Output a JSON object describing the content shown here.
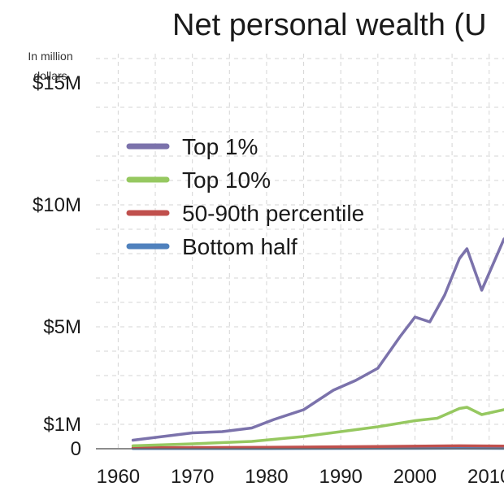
{
  "chart_data": {
    "type": "line",
    "title": "Net personal wealth (U",
    "ylabel": "In million dollars",
    "xlabel": "",
    "xlim": [
      1957,
      2012
    ],
    "ylim": [
      0,
      16.2
    ],
    "grid": true,
    "legend_position": "upper-left",
    "x_ticks": [
      {
        "value": 1960,
        "label": "1960"
      },
      {
        "value": 1970,
        "label": "1970"
      },
      {
        "value": 1980,
        "label": "1980"
      },
      {
        "value": 1990,
        "label": "1990"
      },
      {
        "value": 2000,
        "label": "2000"
      },
      {
        "value": 2010,
        "label": "2010"
      }
    ],
    "y_ticks": [
      {
        "value": 0,
        "label": "0"
      },
      {
        "value": 1,
        "label": "$1M"
      },
      {
        "value": 5,
        "label": "$5M"
      },
      {
        "value": 10,
        "label": "$10M"
      },
      {
        "value": 15,
        "label": "$15M"
      }
    ],
    "series": [
      {
        "name": "Top 1%",
        "color": "#7b72ab",
        "x": [
          1962,
          1966,
          1970,
          1974,
          1978,
          1981,
          1985,
          1989,
          1992,
          1995,
          1998,
          2000,
          2002,
          2004,
          2006,
          2007,
          2009,
          2012
        ],
        "y": [
          0.35,
          0.5,
          0.65,
          0.7,
          0.85,
          1.2,
          1.6,
          2.4,
          2.8,
          3.3,
          4.6,
          5.4,
          5.2,
          6.3,
          7.8,
          8.2,
          6.5,
          8.6
        ]
      },
      {
        "name": "Top 10%",
        "color": "#96c860",
        "x": [
          1962,
          1970,
          1978,
          1985,
          1990,
          1995,
          2000,
          2003,
          2006,
          2007,
          2009,
          2012
        ],
        "y": [
          0.12,
          0.2,
          0.3,
          0.5,
          0.7,
          0.9,
          1.15,
          1.25,
          1.65,
          1.7,
          1.4,
          1.6
        ]
      },
      {
        "name": "50-90th percentile",
        "color": "#c0504d",
        "x": [
          1962,
          1980,
          1995,
          2006,
          2012
        ],
        "y": [
          0.04,
          0.06,
          0.09,
          0.12,
          0.11
        ]
      },
      {
        "name": "Bottom half",
        "color": "#4f81bd",
        "x": [
          1962,
          1980,
          1995,
          2006,
          2012
        ],
        "y": [
          0.01,
          0.01,
          0.015,
          0.02,
          0.015
        ]
      }
    ]
  }
}
